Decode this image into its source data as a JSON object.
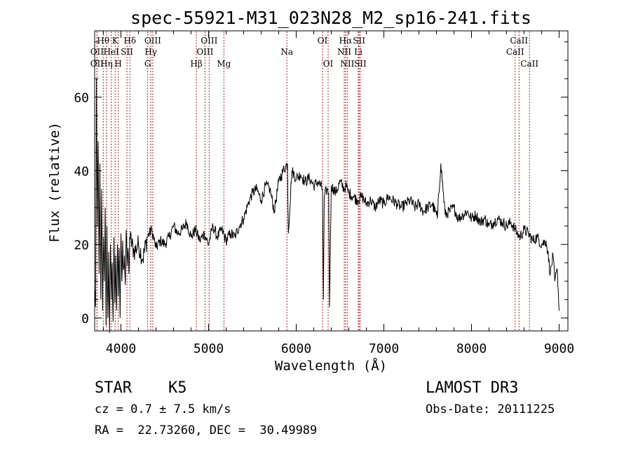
{
  "chart_data": {
    "type": "line",
    "title": "spec-55921-M31_023N28_M2_sp16-241.fits",
    "xlabel": "Wavelength (Å)",
    "ylabel": "Flux (relative)",
    "xlim": [
      3700,
      9100
    ],
    "ylim": [
      -3.5,
      78
    ],
    "xticks": [
      4000,
      5000,
      6000,
      7000,
      8000,
      9000
    ],
    "xtick_labels": [
      "4000",
      "5000",
      "6000",
      "7000",
      "8000",
      "9000"
    ],
    "yticks": [
      0,
      20,
      40,
      60
    ],
    "ytick_labels": [
      "0",
      "20",
      "40",
      "60"
    ],
    "line_color": "#000000",
    "marker_color": "#b22222",
    "series": [
      {
        "name": "spectrum",
        "x": [
          3700,
          3710,
          3720,
          3730,
          3740,
          3750,
          3760,
          3770,
          3780,
          3790,
          3800,
          3810,
          3820,
          3830,
          3840,
          3850,
          3860,
          3870,
          3880,
          3890,
          3900,
          3910,
          3920,
          3930,
          3940,
          3950,
          3960,
          3970,
          3980,
          3990,
          4000,
          4010,
          4020,
          4030,
          4040,
          4050,
          4060,
          4070,
          4080,
          4090,
          4100,
          4150,
          4200,
          4250,
          4300,
          4350,
          4400,
          4450,
          4500,
          4550,
          4600,
          4650,
          4700,
          4750,
          4800,
          4850,
          4900,
          4950,
          5000,
          5050,
          5100,
          5150,
          5200,
          5250,
          5300,
          5350,
          5400,
          5450,
          5500,
          5550,
          5600,
          5650,
          5700,
          5750,
          5800,
          5850,
          5900,
          5910,
          5950,
          6000,
          6050,
          6100,
          6150,
          6200,
          6250,
          6300,
          6310,
          6320,
          6350,
          6370,
          6380,
          6400,
          6450,
          6500,
          6550,
          6563,
          6600,
          6650,
          6700,
          6750,
          6800,
          6850,
          6900,
          6950,
          7000,
          7050,
          7100,
          7150,
          7200,
          7250,
          7300,
          7350,
          7400,
          7450,
          7500,
          7550,
          7600,
          7605,
          7610,
          7650,
          7700,
          7750,
          7800,
          7850,
          7900,
          7950,
          8000,
          8050,
          8100,
          8150,
          8200,
          8250,
          8300,
          8350,
          8400,
          8450,
          8500,
          8520,
          8550,
          8600,
          8650,
          8700,
          8750,
          8800,
          8850,
          8870,
          8900,
          8930,
          8950,
          8980,
          9000
        ],
        "y": [
          8,
          3,
          65,
          25,
          48,
          12,
          42,
          5,
          35,
          2,
          22,
          10,
          30,
          -2,
          25,
          0,
          18,
          -4,
          20,
          5,
          15,
          -1,
          22,
          4,
          17,
          2,
          20,
          6,
          19,
          0,
          23,
          10,
          21,
          13,
          17,
          9,
          24,
          14,
          19,
          12,
          22,
          18,
          20,
          16,
          22,
          24,
          19,
          21,
          20,
          22,
          25,
          23,
          24,
          26,
          22,
          24,
          21,
          23,
          20,
          25,
          22,
          24,
          21,
          23,
          22,
          25,
          27,
          31,
          34,
          35,
          32,
          36,
          35,
          29,
          37,
          40,
          42,
          23,
          40,
          38,
          39,
          37,
          38,
          36,
          37,
          35,
          5,
          33,
          35,
          34,
          3,
          36,
          34,
          37,
          35,
          36,
          34,
          33,
          32,
          33,
          31,
          32,
          30,
          32,
          31,
          33,
          32,
          31,
          30,
          31,
          32,
          30,
          31,
          29,
          30,
          31,
          28,
          29,
          27,
          42,
          28,
          29,
          30,
          27,
          28,
          29,
          27,
          28,
          26,
          27,
          25,
          26,
          27,
          26,
          25,
          26,
          24,
          23,
          22,
          24,
          23,
          21,
          22,
          20,
          21,
          18,
          12,
          17,
          10,
          13,
          2
        ]
      }
    ],
    "lines": [
      {
        "label": "Hθ",
        "x": 3798,
        "row": 1
      },
      {
        "label": "OII",
        "x": 3727,
        "row": 2
      },
      {
        "label": "OII",
        "x": 3727,
        "row": 3
      },
      {
        "label": "Hη",
        "x": 3835,
        "row": 3
      },
      {
        "label": "HeI",
        "x": 3889,
        "row": 2
      },
      {
        "label": "K",
        "x": 3934,
        "row": 1
      },
      {
        "label": "H",
        "x": 3969,
        "row": 3
      },
      {
        "label": "SII",
        "x": 4069,
        "row": 2
      },
      {
        "label": "Hδ",
        "x": 4102,
        "row": 1
      },
      {
        "label": "OIII",
        "x": 4363,
        "row": 1
      },
      {
        "label": "Hγ",
        "x": 4341,
        "row": 2
      },
      {
        "label": "G",
        "x": 4305,
        "row": 3
      },
      {
        "label": "Hβ",
        "x": 4861,
        "row": 3
      },
      {
        "label": "OIII",
        "x": 5007,
        "row": 1
      },
      {
        "label": "OIII",
        "x": 4959,
        "row": 2
      },
      {
        "label": "Mg",
        "x": 5175,
        "row": 3
      },
      {
        "label": "Na",
        "x": 5894,
        "row": 2
      },
      {
        "label": "OI",
        "x": 6300,
        "row": 1
      },
      {
        "label": "OI",
        "x": 6364,
        "row": 3
      },
      {
        "label": "Hα",
        "x": 6563,
        "row": 1
      },
      {
        "label": "NII",
        "x": 6548,
        "row": 2
      },
      {
        "label": "NII",
        "x": 6583,
        "row": 3
      },
      {
        "label": "SII",
        "x": 6717,
        "row": 1
      },
      {
        "label": "Li",
        "x": 6708,
        "row": 2
      },
      {
        "label": "SII",
        "x": 6731,
        "row": 3
      },
      {
        "label": "CaII",
        "x": 8542,
        "row": 1
      },
      {
        "label": "CaII",
        "x": 8498,
        "row": 2
      },
      {
        "label": "CaII",
        "x": 8662,
        "row": 3
      }
    ]
  },
  "info": {
    "class": "STAR",
    "subclass": "K5",
    "survey": "LAMOST DR3",
    "cz": "cz = 0.7 ± 7.5 km/s",
    "obs_date": "Obs-Date: 20111225",
    "coords": "RA =  22.73260, DEC =  30.49989"
  }
}
